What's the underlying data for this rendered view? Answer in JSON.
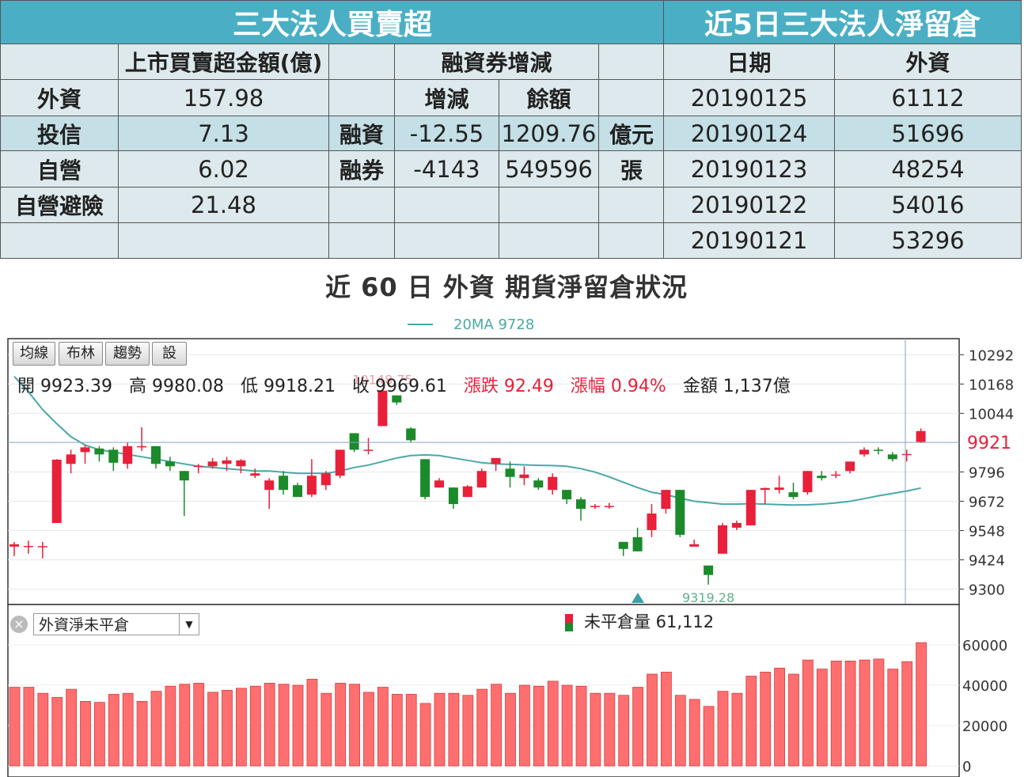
{
  "left_table": {
    "title": "三大法人買賣超",
    "col_header": "上市買賣超金額(億)",
    "margin_header": "融資券增減",
    "sub_change": "增減",
    "sub_balance": "餘額",
    "rows": [
      {
        "name": "外資",
        "amount": "157.98"
      },
      {
        "name": "投信",
        "amount": "7.13"
      },
      {
        "name": "自營",
        "amount": "6.02"
      },
      {
        "name": "自營避險",
        "amount": "21.48"
      }
    ],
    "margin_rows": [
      {
        "name": "融資",
        "change": "-12.55",
        "balance": "1209.76",
        "unit": "億元"
      },
      {
        "name": "融券",
        "change": "-4143",
        "balance": "549596",
        "unit": "張"
      }
    ]
  },
  "right_table": {
    "title": "近5日三大法人淨留倉",
    "col_date": "日期",
    "col_foreign": "外資",
    "rows": [
      {
        "date": "20190125",
        "foreign": "61112"
      },
      {
        "date": "20190124",
        "foreign": "51696"
      },
      {
        "date": "20190123",
        "foreign": "48254"
      },
      {
        "date": "20190122",
        "foreign": "54016"
      },
      {
        "date": "20190121",
        "foreign": "53296"
      }
    ]
  },
  "caption": "近 60 日 外資 期貨淨留倉狀況",
  "toolbar": {
    "ma": "均線",
    "bollinger": "布林",
    "trend": "趨勢",
    "settings": "設"
  },
  "ohlc": {
    "open": "開 9923.39",
    "high": "高 9980.08",
    "low": "低 9918.21",
    "close": "收 9969.61",
    "change": "漲跌 92.49",
    "pct": "漲幅 0.94%",
    "amount": "金額 1,137億"
  },
  "ma_legend": "20MA 9728",
  "max_label": "10148.75",
  "min_label": "9319.28",
  "current_price_label": "9921",
  "indicator": {
    "name": "外資淨未平倉",
    "legend": "未平倉量 61,112"
  },
  "colors": {
    "up": "#e8203a",
    "down": "#1b8a2a",
    "ma": "#4aa8a8",
    "header": "#4aafc4",
    "row_light": "#dde9ec",
    "row_mid": "#c4dfe5",
    "volume": "#ff6f6f"
  },
  "chart_data": [
    {
      "type": "candlestick",
      "title": "",
      "y_ticks": [
        10292,
        10168,
        10044,
        9921,
        9796,
        9672,
        9548,
        9424,
        9300
      ],
      "ylim": [
        9235,
        10360
      ],
      "grid": true,
      "candles": [
        {
          "o": 9480,
          "h": 9500,
          "l": 9440,
          "c": 9490
        },
        {
          "o": 9480,
          "h": 9505,
          "l": 9450,
          "c": 9483
        },
        {
          "o": 9480,
          "h": 9500,
          "l": 9430,
          "c": 9482
        },
        {
          "o": 9580,
          "h": 9850,
          "l": 9580,
          "c": 9848
        },
        {
          "o": 9830,
          "h": 9890,
          "l": 9790,
          "c": 9870
        },
        {
          "o": 9880,
          "h": 9910,
          "l": 9830,
          "c": 9900
        },
        {
          "o": 9895,
          "h": 9905,
          "l": 9840,
          "c": 9870
        },
        {
          "o": 9890,
          "h": 9900,
          "l": 9800,
          "c": 9835
        },
        {
          "o": 9830,
          "h": 9920,
          "l": 9810,
          "c": 9905
        },
        {
          "o": 9900,
          "h": 9985,
          "l": 9885,
          "c": 9905
        },
        {
          "o": 9905,
          "h": 9905,
          "l": 9810,
          "c": 9830
        },
        {
          "o": 9840,
          "h": 9860,
          "l": 9800,
          "c": 9820
        },
        {
          "o": 9800,
          "h": 9800,
          "l": 9610,
          "c": 9760
        },
        {
          "o": 9820,
          "h": 9830,
          "l": 9790,
          "c": 9822
        },
        {
          "o": 9820,
          "h": 9855,
          "l": 9810,
          "c": 9840
        },
        {
          "o": 9830,
          "h": 9860,
          "l": 9800,
          "c": 9845
        },
        {
          "o": 9820,
          "h": 9850,
          "l": 9790,
          "c": 9845
        },
        {
          "o": 9780,
          "h": 9810,
          "l": 9770,
          "c": 9790
        },
        {
          "o": 9720,
          "h": 9770,
          "l": 9640,
          "c": 9760
        },
        {
          "o": 9780,
          "h": 9800,
          "l": 9700,
          "c": 9720
        },
        {
          "o": 9740,
          "h": 9750,
          "l": 9690,
          "c": 9690
        },
        {
          "o": 9700,
          "h": 9850,
          "l": 9690,
          "c": 9780
        },
        {
          "o": 9740,
          "h": 9800,
          "l": 9720,
          "c": 9790
        },
        {
          "o": 9780,
          "h": 9890,
          "l": 9770,
          "c": 9890
        },
        {
          "o": 9960,
          "h": 9960,
          "l": 9880,
          "c": 9890
        },
        {
          "o": 9890,
          "h": 9940,
          "l": 9870,
          "c": 9890
        },
        {
          "o": 9990,
          "h": 10148,
          "l": 9990,
          "c": 10140
        },
        {
          "o": 10120,
          "h": 10120,
          "l": 10080,
          "c": 10090
        },
        {
          "o": 9980,
          "h": 9985,
          "l": 9920,
          "c": 9930
        },
        {
          "o": 9850,
          "h": 9850,
          "l": 9680,
          "c": 9690
        },
        {
          "o": 9730,
          "h": 9770,
          "l": 9730,
          "c": 9760
        },
        {
          "o": 9730,
          "h": 9730,
          "l": 9640,
          "c": 9660
        },
        {
          "o": 9690,
          "h": 9740,
          "l": 9690,
          "c": 9735
        },
        {
          "o": 9730,
          "h": 9810,
          "l": 9730,
          "c": 9800
        },
        {
          "o": 9830,
          "h": 9845,
          "l": 9800,
          "c": 9855
        },
        {
          "o": 9810,
          "h": 9840,
          "l": 9730,
          "c": 9775
        },
        {
          "o": 9770,
          "h": 9820,
          "l": 9740,
          "c": 9785
        },
        {
          "o": 9760,
          "h": 9770,
          "l": 9720,
          "c": 9730
        },
        {
          "o": 9720,
          "h": 9790,
          "l": 9700,
          "c": 9775
        },
        {
          "o": 9720,
          "h": 9720,
          "l": 9660,
          "c": 9680
        },
        {
          "o": 9680,
          "h": 9690,
          "l": 9590,
          "c": 9640
        },
        {
          "o": 9650,
          "h": 9660,
          "l": 9640,
          "c": 9652
        },
        {
          "o": 9650,
          "h": 9665,
          "l": 9640,
          "c": 9652
        },
        {
          "o": 9500,
          "h": 9500,
          "l": 9440,
          "c": 9470
        },
        {
          "o": 9520,
          "h": 9560,
          "l": 9460,
          "c": 9460
        },
        {
          "o": 9550,
          "h": 9660,
          "l": 9520,
          "c": 9620
        },
        {
          "o": 9640,
          "h": 9720,
          "l": 9620,
          "c": 9720
        },
        {
          "o": 9720,
          "h": 9720,
          "l": 9520,
          "c": 9530
        },
        {
          "o": 9480,
          "h": 9510,
          "l": 9480,
          "c": 9490
        },
        {
          "o": 9400,
          "h": 9400,
          "l": 9319,
          "c": 9360
        },
        {
          "o": 9450,
          "h": 9580,
          "l": 9450,
          "c": 9570
        },
        {
          "o": 9560,
          "h": 9590,
          "l": 9550,
          "c": 9580
        },
        {
          "o": 9570,
          "h": 9720,
          "l": 9570,
          "c": 9720
        },
        {
          "o": 9720,
          "h": 9730,
          "l": 9660,
          "c": 9728
        },
        {
          "o": 9720,
          "h": 9780,
          "l": 9705,
          "c": 9730
        },
        {
          "o": 9710,
          "h": 9750,
          "l": 9680,
          "c": 9690
        },
        {
          "o": 9710,
          "h": 9800,
          "l": 9700,
          "c": 9800
        },
        {
          "o": 9780,
          "h": 9800,
          "l": 9760,
          "c": 9770
        },
        {
          "o": 9780,
          "h": 9800,
          "l": 9770,
          "c": 9785
        },
        {
          "o": 9800,
          "h": 9840,
          "l": 9790,
          "c": 9840
        },
        {
          "o": 9870,
          "h": 9900,
          "l": 9860,
          "c": 9890
        },
        {
          "o": 9890,
          "h": 9900,
          "l": 9870,
          "c": 9888
        },
        {
          "o": 9870,
          "h": 9880,
          "l": 9840,
          "c": 9850
        },
        {
          "o": 9870,
          "h": 9890,
          "l": 9840,
          "c": 9872
        },
        {
          "o": 9923,
          "h": 9980,
          "l": 9918,
          "c": 9969
        }
      ],
      "ma20": [
        10200,
        10135,
        10060,
        10000,
        9945,
        9910,
        9890,
        9880,
        9870,
        9860,
        9850,
        9840,
        9830,
        9820,
        9815,
        9810,
        9805,
        9800,
        9800,
        9795,
        9790,
        9790,
        9790,
        9800,
        9815,
        9825,
        9840,
        9855,
        9865,
        9868,
        9865,
        9855,
        9845,
        9835,
        9830,
        9828,
        9826,
        9824,
        9823,
        9820,
        9810,
        9795,
        9775,
        9752,
        9730,
        9710,
        9700,
        9685,
        9672,
        9666,
        9660,
        9660,
        9662,
        9660,
        9658,
        9656,
        9657,
        9660,
        9665,
        9672,
        9683,
        9695,
        9705,
        9715,
        9728
      ]
    },
    {
      "type": "bar",
      "title": "",
      "y_ticks": [
        0,
        20000,
        40000,
        60000
      ],
      "ylim": [
        0,
        60000
      ],
      "values": [
        39000,
        39000,
        36000,
        34000,
        38000,
        32000,
        31500,
        35500,
        36000,
        32000,
        37000,
        39500,
        40500,
        41000,
        36500,
        37500,
        38500,
        39500,
        41000,
        40500,
        40000,
        43000,
        36000,
        41000,
        40500,
        36500,
        39000,
        35500,
        35500,
        31000,
        36000,
        36000,
        35000,
        38000,
        40500,
        36000,
        40000,
        39500,
        42000,
        40000,
        39500,
        36000,
        36000,
        35000,
        39000,
        45500,
        46500,
        35000,
        33000,
        29500,
        37000,
        36000,
        44500,
        46500,
        48500,
        45500,
        52500,
        48000,
        52000,
        52000,
        52500,
        53000,
        48000,
        51696,
        61112
      ]
    }
  ]
}
